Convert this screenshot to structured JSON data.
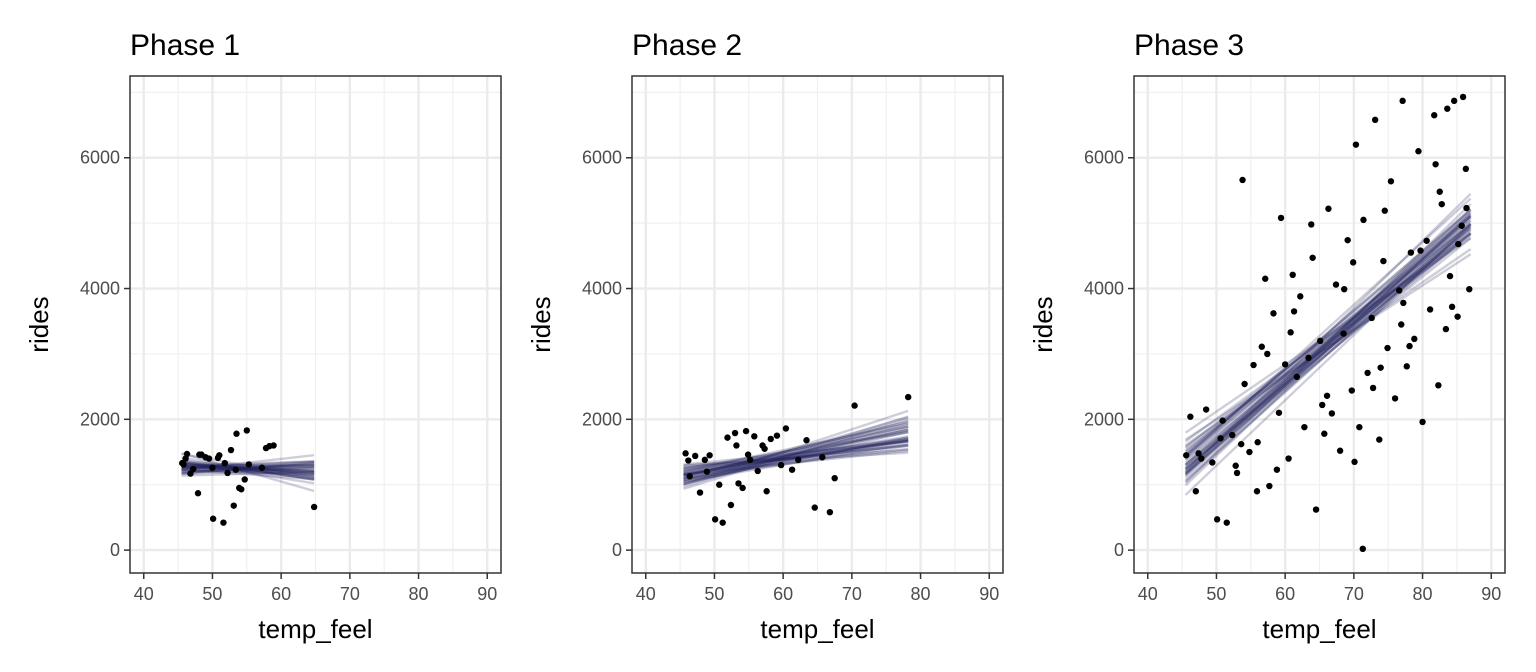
{
  "chart_data": [
    {
      "type": "scatter",
      "title": "Phase 1",
      "xlabel": "temp_feel",
      "ylabel": "rides",
      "xlim": [
        38,
        92
      ],
      "ylim": [
        -350,
        7250
      ],
      "x_ticks": [
        "40",
        "50",
        "60",
        "70",
        "80",
        "90"
      ],
      "y_ticks": [
        "0",
        "2000",
        "4000",
        "6000"
      ],
      "grid": true,
      "points": {
        "x": [
          45.6,
          45.8,
          46.3,
          46.8,
          47.2,
          47.9,
          48.4,
          49.0,
          49.5,
          50.1,
          50.8,
          51.0,
          51.6,
          52.2,
          52.7,
          53.1,
          53.5,
          53.9,
          54.2,
          54.7,
          55.0,
          55.3,
          57.2,
          57.8,
          58.3,
          58.9,
          64.8,
          50.0,
          51.8,
          53.4,
          46.1,
          48.1
        ],
        "y": [
          1330,
          1310,
          1470,
          1170,
          1240,
          870,
          1460,
          1420,
          1400,
          480,
          1410,
          1450,
          420,
          1180,
          1530,
          680,
          1780,
          950,
          930,
          1080,
          1830,
          1310,
          1260,
          1560,
          1590,
          1600,
          660,
          1260,
          1330,
          1230,
          1400,
          1460
        ]
      },
      "fit_lines": {
        "x_range": [
          45.5,
          64.8
        ],
        "count": 40,
        "style": "semi-transparent dark navy"
      }
    },
    {
      "type": "scatter",
      "title": "Phase 2",
      "xlabel": "temp_feel",
      "ylabel": "rides",
      "xlim": [
        38,
        92
      ],
      "ylim": [
        -350,
        7250
      ],
      "x_ticks": [
        "40",
        "50",
        "60",
        "70",
        "80",
        "90"
      ],
      "y_ticks": [
        "0",
        "2000",
        "4000",
        "6000"
      ],
      "grid": true,
      "points": {
        "x": [
          45.8,
          46.4,
          47.2,
          47.9,
          48.6,
          49.3,
          50.1,
          50.7,
          51.2,
          51.9,
          52.4,
          53.0,
          53.5,
          54.1,
          54.6,
          55.2,
          55.8,
          56.3,
          57.0,
          57.6,
          58.2,
          59.1,
          59.7,
          60.4,
          61.3,
          62.2,
          63.4,
          64.6,
          65.7,
          66.8,
          67.5,
          70.4,
          78.2,
          46.2,
          48.9,
          53.2,
          54.9,
          57.3
        ],
        "y": [
          1480,
          1130,
          1440,
          880,
          1380,
          1450,
          470,
          1000,
          420,
          1720,
          690,
          1790,
          1020,
          950,
          1820,
          1380,
          1740,
          1210,
          1600,
          900,
          1700,
          1750,
          1300,
          1860,
          1230,
          1380,
          1680,
          650,
          1420,
          580,
          1100,
          2210,
          2340,
          1370,
          1200,
          1600,
          1460,
          1550
        ]
      },
      "fit_lines": {
        "x_range": [
          45.5,
          78.2
        ],
        "count": 40,
        "style": "semi-transparent dark navy"
      }
    },
    {
      "type": "scatter",
      "title": "Phase 3",
      "xlabel": "temp_feel",
      "ylabel": "rides",
      "xlim": [
        38,
        92
      ],
      "ylim": [
        -350,
        7250
      ],
      "x_ticks": [
        "40",
        "50",
        "60",
        "70",
        "80",
        "90"
      ],
      "y_ticks": [
        "0",
        "2000",
        "4000",
        "6000"
      ],
      "grid": true,
      "points": {
        "x": [
          45.6,
          46.2,
          47.0,
          47.8,
          48.5,
          49.4,
          50.1,
          50.9,
          51.5,
          52.3,
          53.0,
          53.6,
          54.1,
          54.8,
          55.4,
          56.0,
          56.6,
          57.1,
          57.7,
          58.3,
          58.8,
          59.4,
          60.0,
          60.5,
          61.1,
          61.7,
          62.2,
          62.8,
          63.4,
          64.0,
          64.5,
          65.1,
          65.7,
          66.3,
          66.8,
          67.4,
          68.0,
          68.5,
          69.1,
          69.7,
          70.3,
          70.8,
          71.4,
          72.0,
          72.6,
          73.1,
          73.7,
          74.3,
          74.9,
          75.4,
          76.0,
          76.6,
          77.1,
          77.7,
          78.3,
          78.8,
          79.4,
          80.0,
          80.6,
          81.1,
          81.7,
          82.3,
          82.8,
          83.4,
          84.0,
          84.6,
          85.1,
          85.7,
          86.3,
          86.8,
          53.8,
          71.3,
          77.2,
          83.6,
          85.9,
          47.4,
          50.6,
          52.8,
          55.9,
          57.4,
          59.1,
          61.3,
          63.8,
          66.1,
          68.6,
          70.1,
          72.8,
          74.5,
          76.9,
          79.7,
          81.9,
          84.3,
          86.4,
          60.8,
          65.4,
          69.9,
          73.9,
          78.1,
          82.5,
          85.2
        ],
        "y": [
          1450,
          2040,
          900,
          1400,
          2150,
          1340,
          470,
          1980,
          420,
          1760,
          1180,
          1620,
          2540,
          1500,
          2830,
          1650,
          3110,
          4150,
          980,
          3620,
          1230,
          5080,
          2840,
          1400,
          4210,
          2650,
          3880,
          1880,
          2940,
          4470,
          620,
          3200,
          1780,
          5220,
          2090,
          4060,
          1520,
          3310,
          4740,
          2440,
          6200,
          1880,
          5050,
          2710,
          3550,
          6580,
          1690,
          4420,
          3090,
          5640,
          2320,
          3970,
          6870,
          2810,
          4550,
          3230,
          6100,
          1960,
          4730,
          3680,
          6650,
          2520,
          5290,
          3380,
          4190,
          6870,
          3570,
          4960,
          5830,
          3990,
          5660,
          20,
          3780,
          6750,
          6930,
          1480,
          1710,
          1290,
          900,
          3000,
          2100,
          3650,
          4980,
          2360,
          3990,
          1350,
          2480,
          5190,
          3450,
          4580,
          5900,
          3720,
          5230,
          3330,
          2220,
          4400,
          2790,
          3120,
          5480,
          4680
        ]
      },
      "fit_lines": {
        "x_range": [
          45.5,
          87.0
        ],
        "count": 40,
        "style": "semi-transparent dark navy"
      }
    }
  ]
}
